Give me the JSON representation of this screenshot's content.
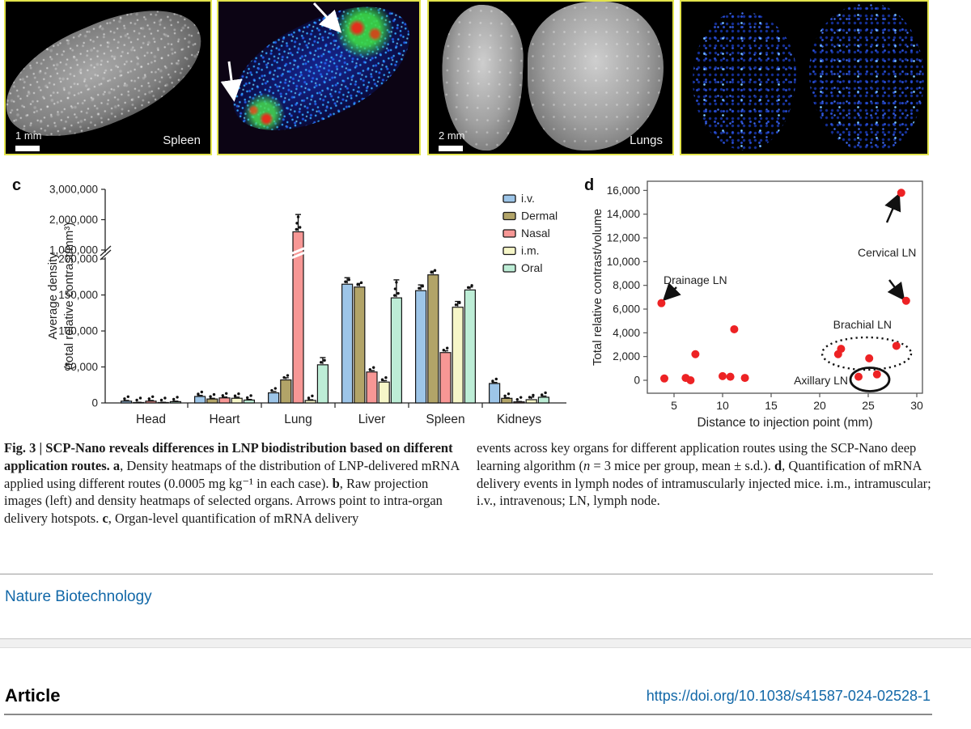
{
  "panels": {
    "spleen_raw": {
      "scale_bar": "1 mm",
      "label": "Spleen"
    },
    "spleen_heatmap": {
      "arrows": 2
    },
    "lungs_raw": {
      "scale_bar": "2 mm",
      "label": "Lungs"
    },
    "lungs_heatmap": {},
    "c_label": "c",
    "d_label": "d"
  },
  "chart_data": [
    {
      "type": "bar",
      "categories": [
        "Head",
        "Heart",
        "Lung",
        "Liver",
        "Spleen",
        "Kidneys"
      ],
      "series": [
        {
          "name": "i.v.",
          "color": "#9dc5e8",
          "values": [
            2500,
            9000,
            14000,
            165000,
            156000,
            27000
          ],
          "errors": [
            900,
            1500,
            2000,
            9000,
            8000,
            1500
          ]
        },
        {
          "name": "Dermal",
          "color": "#b2a468",
          "values": [
            600,
            5500,
            32000,
            161000,
            178000,
            6400
          ],
          "errors": [
            250,
            900,
            3000,
            5000,
            5000,
            900
          ]
        },
        {
          "name": "Nasal",
          "color": "#f79795",
          "values": [
            2500,
            7000,
            1600000,
            43000,
            70000,
            1500
          ],
          "errors": [
            900,
            1200,
            570000,
            2000,
            2500,
            450
          ]
        },
        {
          "name": "i.m.",
          "color": "#f6f6c8",
          "values": [
            600,
            6500,
            3500,
            29000,
            133000,
            4500
          ],
          "errors": [
            250,
            1500,
            900,
            2000,
            8000,
            3600
          ]
        },
        {
          "name": "Oral",
          "color": "#bdedd6",
          "values": [
            1800,
            4000,
            53000,
            146000,
            157000,
            7900
          ],
          "errors": [
            650,
            900,
            10000,
            25000,
            4000,
            1600
          ]
        }
      ],
      "ylabel_line1": "Average density",
      "ylabel_line2": "(total relative contrast/mm³)",
      "yticks_lower": [
        0,
        50000,
        100000,
        150000,
        200000
      ],
      "yticks_upper": [
        1000000,
        2000000,
        3000000
      ],
      "axis_break": true,
      "legend_position": "top-right"
    },
    {
      "type": "scatter",
      "xlabel": "Distance to injection point (mm)",
      "ylabel": "Total relative contrast/volume",
      "xticks": [
        5,
        10,
        15,
        20,
        25,
        30
      ],
      "yticks": [
        0,
        2000,
        4000,
        6000,
        8000,
        10000,
        12000,
        14000,
        16000
      ],
      "xlim": [
        2.2,
        30.6
      ],
      "ylim": [
        -1100,
        16800
      ],
      "point_color": "#ed2224",
      "points": [
        [
          3.7,
          6500
        ],
        [
          4.0,
          150
        ],
        [
          6.2,
          200
        ],
        [
          6.7,
          0
        ],
        [
          7.2,
          2200
        ],
        [
          10.0,
          350
        ],
        [
          10.8,
          300
        ],
        [
          11.2,
          4300
        ],
        [
          12.3,
          200
        ],
        [
          21.9,
          2200
        ],
        [
          22.2,
          2650
        ],
        [
          24.0,
          300
        ],
        [
          25.1,
          1850
        ],
        [
          25.9,
          500
        ],
        [
          27.9,
          2900
        ],
        [
          28.4,
          15800
        ],
        [
          28.9,
          6700
        ]
      ],
      "annotations": [
        {
          "text": "Drainage LN"
        },
        {
          "text": "Cervical LN"
        },
        {
          "text": "Brachial LN",
          "ellipse": "dotted"
        },
        {
          "text": "Axillary LN",
          "ellipse": "solid"
        }
      ]
    }
  ],
  "caption": {
    "left": [
      {
        "b": true,
        "t": "Fig. 3 | SCP-Nano reveals differences in LNP biodistribution based on different application routes. "
      },
      {
        "b": true,
        "t": "a"
      },
      {
        "t": ", Density heatmaps of the distribution of LNP-delivered mRNA applied using different routes (0.0005 mg kg⁻¹ in each case). "
      },
      {
        "b": true,
        "t": "b"
      },
      {
        "t": ", Raw projection images (left) and density heatmaps of selected organs. Arrows point to intra-organ delivery hotspots. "
      },
      {
        "b": true,
        "t": "c"
      },
      {
        "t": ", Organ-level quantification of mRNA delivery"
      }
    ],
    "right": [
      {
        "t": "events across key organs for different application routes using the SCP-Nano deep learning algorithm ("
      },
      {
        "i": true,
        "t": "n"
      },
      {
        "t": " = 3 mice per group, mean ± s.d.). "
      },
      {
        "b": true,
        "t": "d"
      },
      {
        "t": ", Quantification of mRNA delivery events in lymph nodes of intramuscularly injected mice. i.m., intramuscular; i.v., intravenous; LN, lymph node."
      }
    ]
  },
  "footer": {
    "journal": "Nature Biotechnology",
    "article_label": "Article",
    "doi": "https://doi.org/10.1038/s41587-024-02528-1"
  },
  "colors": {
    "panel_border": "#e3e44c",
    "link_blue": "#1268a8",
    "scatter_red": "#ed2224",
    "axis": "#222222"
  }
}
